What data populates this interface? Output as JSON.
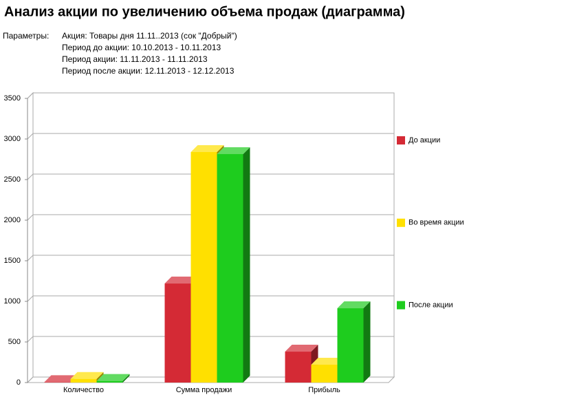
{
  "header": {
    "title": "Анализ акции по увеличению объема продаж (диаграмма)"
  },
  "parameters": {
    "label": "Параметры:",
    "lines": [
      "Акция: Товары дня 11.11..2013 (сок \"Добрый\")",
      "Период до акции: 10.10.2013 - 10.11.2013",
      "Период акции: 11.11.2013 - 11.11.2013",
      "Период после акции: 12.11.2013 - 12.12.2013"
    ]
  },
  "chart_data": {
    "type": "bar3d",
    "categories": [
      "Количество",
      "Сумма продажи",
      "Прибыль"
    ],
    "series": [
      {
        "name": "До акции",
        "color": "#d42a35",
        "values": [
          5,
          1220,
          381
        ]
      },
      {
        "name": "Во время акции",
        "color": "#ffe000",
        "values": [
          45,
          2839,
          220
        ]
      },
      {
        "name": "После акции",
        "color": "#1ecc1e",
        "values": [
          20,
          2814,
          915
        ]
      }
    ],
    "ylim": [
      0,
      3500
    ],
    "yticks": [
      0,
      500,
      1000,
      1500,
      2000,
      2500,
      3000,
      3500
    ],
    "grid": true,
    "legend": "right"
  }
}
